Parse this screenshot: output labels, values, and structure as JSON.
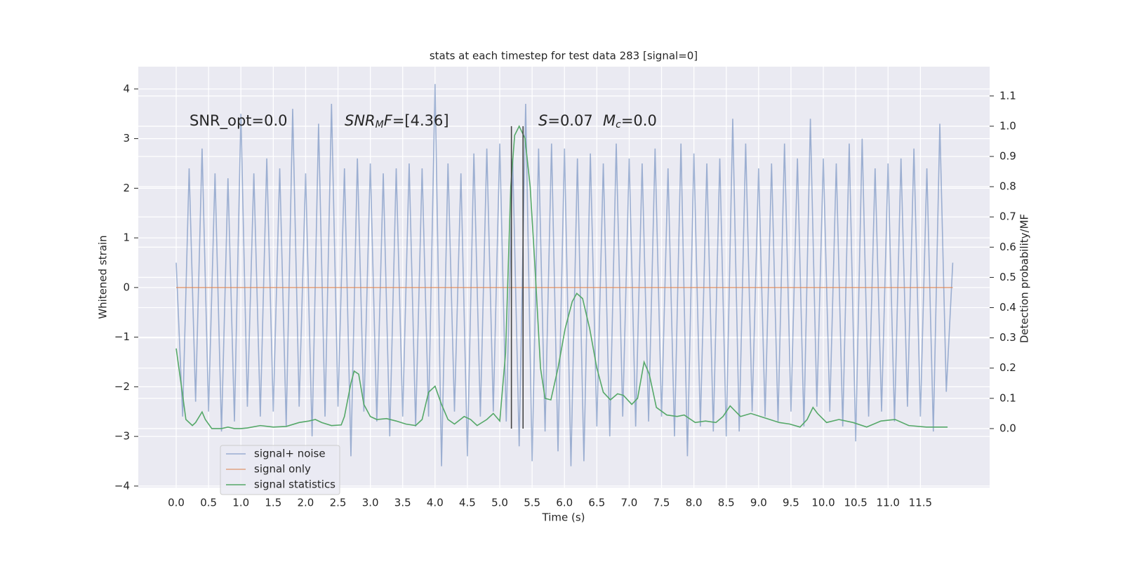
{
  "chart_data": {
    "type": "line",
    "title": "stats at each timestep for test data 283 [signal=0]",
    "xlabel": "Time (s)",
    "ylabel": "Whitened strain",
    "y2label": "Detection probability/MF",
    "annotations": [
      [
        "SNR_opt=0.0"
      ],
      [
        "SNR",
        "M",
        "F",
        "=[4.36]"
      ],
      [
        "S",
        "=0.07"
      ],
      [
        "M",
        "c",
        "=0.0"
      ]
    ],
    "xlim": [
      -0.586,
      12.57
    ],
    "ylim": [
      -4.03,
      4.45
    ],
    "y2lim": [
      -0.195,
      1.197
    ],
    "grid": true,
    "legend": "lower left",
    "xticks": [
      {
        "value": 0,
        "label": "0.0"
      },
      {
        "value": 0.5,
        "label": "0.5"
      },
      {
        "value": 1,
        "label": "1.0"
      },
      {
        "value": 1.5,
        "label": "1.5"
      },
      {
        "value": 2,
        "label": "2.0"
      },
      {
        "value": 2.5,
        "label": "2.5"
      },
      {
        "value": 3,
        "label": "3.0"
      },
      {
        "value": 3.5,
        "label": "3.5"
      },
      {
        "value": 4,
        "label": "4.0"
      },
      {
        "value": 4.5,
        "label": "4.5"
      },
      {
        "value": 5,
        "label": "5.0"
      },
      {
        "value": 5.5,
        "label": "5.5"
      },
      {
        "value": 6,
        "label": "6.0"
      },
      {
        "value": 6.5,
        "label": "6.5"
      },
      {
        "value": 7,
        "label": "7.0"
      },
      {
        "value": 7.5,
        "label": "7.5"
      },
      {
        "value": 8,
        "label": "8.0"
      },
      {
        "value": 8.5,
        "label": "8.5"
      },
      {
        "value": 9,
        "label": "9.0"
      },
      {
        "value": 9.5,
        "label": "9.5"
      },
      {
        "value": 10,
        "label": "10.0"
      },
      {
        "value": 10.5,
        "label": "10.5"
      },
      {
        "value": 11,
        "label": "11.0"
      },
      {
        "value": 11.5,
        "label": "11.5"
      }
    ],
    "yticks": [
      {
        "value": -4,
        "label": "−4"
      },
      {
        "value": -3,
        "label": "−3"
      },
      {
        "value": -2,
        "label": "−2"
      },
      {
        "value": -1,
        "label": "−1"
      },
      0,
      1,
      2,
      3,
      4
    ],
    "y2ticks": [
      {
        "value": 0,
        "label": "0.0"
      },
      {
        "value": 0.1,
        "label": "0.1"
      },
      {
        "value": 0.2,
        "label": "0.2"
      },
      {
        "value": 0.3,
        "label": "0.3"
      },
      {
        "value": 0.4,
        "label": "0.4"
      },
      {
        "value": 0.5,
        "label": "0.5"
      },
      {
        "value": 0.6,
        "label": "0.6"
      },
      {
        "value": 0.7,
        "label": "0.7"
      },
      {
        "value": 0.8,
        "label": "0.8"
      },
      {
        "value": 0.9,
        "label": "0.9"
      },
      {
        "value": 1.0,
        "label": "1.0"
      },
      {
        "value": 1.1,
        "label": "1.1"
      }
    ],
    "series": [
      {
        "name": "signal+ noise",
        "color": "#4c72b0",
        "opacity": 0.5,
        "x": [
          0,
          0.1,
          0.2,
          0.3,
          0.4,
          0.5,
          0.6,
          0.7,
          0.8,
          0.9,
          1,
          1.1,
          1.2,
          1.3,
          1.4,
          1.5,
          1.6,
          1.7,
          1.8,
          1.9,
          2,
          2.1,
          2.2,
          2.3,
          2.4,
          2.5,
          2.6,
          2.7,
          2.8,
          2.9,
          3,
          3.1,
          3.2,
          3.3,
          3.4,
          3.5,
          3.6,
          3.7,
          3.8,
          3.9,
          4,
          4.1,
          4.2,
          4.3,
          4.4,
          4.5,
          4.6,
          4.7,
          4.8,
          4.9,
          5,
          5.1,
          5.2,
          5.3,
          5.4,
          5.5,
          5.6,
          5.7,
          5.8,
          5.9,
          6,
          6.1,
          6.2,
          6.3,
          6.4,
          6.5,
          6.6,
          6.7,
          6.8,
          6.9,
          7,
          7.1,
          7.2,
          7.3,
          7.4,
          7.5,
          7.6,
          7.7,
          7.8,
          7.9,
          8,
          8.1,
          8.2,
          8.3,
          8.4,
          8.5,
          8.6,
          8.7,
          8.8,
          8.9,
          9,
          9.1,
          9.2,
          9.3,
          9.4,
          9.5,
          9.6,
          9.7,
          9.8,
          9.9,
          10,
          10.1,
          10.2,
          10.3,
          10.4,
          10.5,
          10.6,
          10.7,
          10.8,
          10.9,
          11,
          11.1,
          11.2,
          11.3,
          11.4,
          11.5,
          11.6,
          11.7,
          11.8,
          11.9,
          12
        ],
        "values": [
          0.5,
          -2.6,
          2.4,
          -2.3,
          2.8,
          -2.5,
          2.3,
          -2.9,
          2.2,
          -2.7,
          3.5,
          -2.4,
          2.3,
          -2.6,
          2.6,
          -2.5,
          2.4,
          -2.8,
          3.6,
          -2.4,
          2.3,
          -3.0,
          3.3,
          -2.6,
          3.7,
          -2.4,
          2.4,
          -3.4,
          2.6,
          -2.5,
          2.5,
          -2.7,
          2.3,
          -3.0,
          2.4,
          -2.6,
          2.5,
          -2.8,
          2.4,
          -2.6,
          4.1,
          -3.6,
          2.5,
          -2.5,
          2.3,
          -3.4,
          2.7,
          -2.6,
          2.8,
          -2.5,
          2.9,
          -2.7,
          2.6,
          -3.2,
          3.7,
          -3.5,
          2.8,
          -2.9,
          2.9,
          -3.3,
          2.8,
          -3.6,
          2.6,
          -3.5,
          2.7,
          -2.8,
          2.5,
          -3.0,
          2.9,
          -2.6,
          2.6,
          -2.8,
          2.5,
          -2.7,
          2.8,
          -2.6,
          2.4,
          -3.0,
          2.9,
          -3.4,
          2.7,
          -2.8,
          2.5,
          -2.9,
          2.6,
          -3.0,
          3.4,
          -2.9,
          2.9,
          -2.5,
          2.4,
          -2.6,
          2.5,
          -2.7,
          2.9,
          -2.5,
          2.6,
          -2.8,
          3.4,
          -2.4,
          2.6,
          -2.5,
          2.5,
          -2.8,
          2.9,
          -3.1,
          3.0,
          -2.6,
          2.4,
          -2.5,
          2.5,
          -2.7,
          2.6,
          -2.4,
          2.8,
          -2.6,
          2.4,
          -2.9,
          3.3,
          -2.1,
          0.5
        ]
      },
      {
        "name": "signal only",
        "color": "#dd8452",
        "opacity": 0.7,
        "x": [
          0,
          12
        ],
        "values": [
          0,
          0
        ]
      },
      {
        "name": "signal statistics",
        "color": "#55a868",
        "opacity": 1,
        "axis": "y2",
        "x": [
          0,
          0.1,
          0.15,
          0.25,
          0.3,
          0.4,
          0.45,
          0.55,
          0.7,
          0.8,
          0.9,
          1.0,
          1.1,
          1.3,
          1.5,
          1.7,
          1.9,
          2.05,
          2.15,
          2.25,
          2.4,
          2.55,
          2.6,
          2.7,
          2.75,
          2.82,
          2.9,
          3.0,
          3.1,
          3.25,
          3.4,
          3.55,
          3.7,
          3.8,
          3.9,
          4.0,
          4.1,
          4.2,
          4.3,
          4.45,
          4.55,
          4.65,
          4.8,
          4.9,
          5.0,
          5.09,
          5.17,
          5.23,
          5.3,
          5.39,
          5.47,
          5.54,
          5.63,
          5.7,
          5.79,
          5.9,
          6.01,
          6.12,
          6.19,
          6.28,
          6.39,
          6.5,
          6.6,
          6.71,
          6.82,
          6.91,
          7.04,
          7.13,
          7.23,
          7.31,
          7.42,
          7.58,
          7.74,
          7.85,
          8.02,
          8.18,
          8.34,
          8.45,
          8.56,
          8.72,
          8.88,
          9.1,
          9.32,
          9.48,
          9.64,
          9.75,
          9.84,
          9.91,
          10.05,
          10.24,
          10.46,
          10.67,
          10.89,
          11.11,
          11.32,
          11.59,
          11.92
        ],
        "values": [
          0.265,
          0.11,
          0.03,
          0.01,
          0.02,
          0.055,
          0.03,
          0.0,
          0.0,
          0.005,
          0.0,
          0.0,
          0.002,
          0.01,
          0.005,
          0.007,
          0.02,
          0.025,
          0.03,
          0.02,
          0.01,
          0.012,
          0.04,
          0.15,
          0.19,
          0.18,
          0.08,
          0.04,
          0.03,
          0.033,
          0.025,
          0.015,
          0.01,
          0.03,
          0.12,
          0.14,
          0.08,
          0.03,
          0.015,
          0.04,
          0.03,
          0.01,
          0.03,
          0.05,
          0.025,
          0.25,
          0.8,
          0.97,
          1.0,
          0.96,
          0.8,
          0.55,
          0.2,
          0.1,
          0.095,
          0.2,
          0.33,
          0.42,
          0.447,
          0.43,
          0.33,
          0.2,
          0.12,
          0.095,
          0.115,
          0.11,
          0.08,
          0.1,
          0.22,
          0.18,
          0.07,
          0.045,
          0.04,
          0.045,
          0.02,
          0.025,
          0.02,
          0.04,
          0.075,
          0.04,
          0.05,
          0.035,
          0.02,
          0.015,
          0.005,
          0.03,
          0.07,
          0.05,
          0.02,
          0.03,
          0.02,
          0.005,
          0.025,
          0.03,
          0.01,
          0.005,
          0.005
        ]
      }
    ],
    "vlines": {
      "color": "#444444",
      "axis": "y2",
      "x": [
        5.18,
        5.36
      ],
      "ymin": 0,
      "ymax": 1.0
    }
  }
}
